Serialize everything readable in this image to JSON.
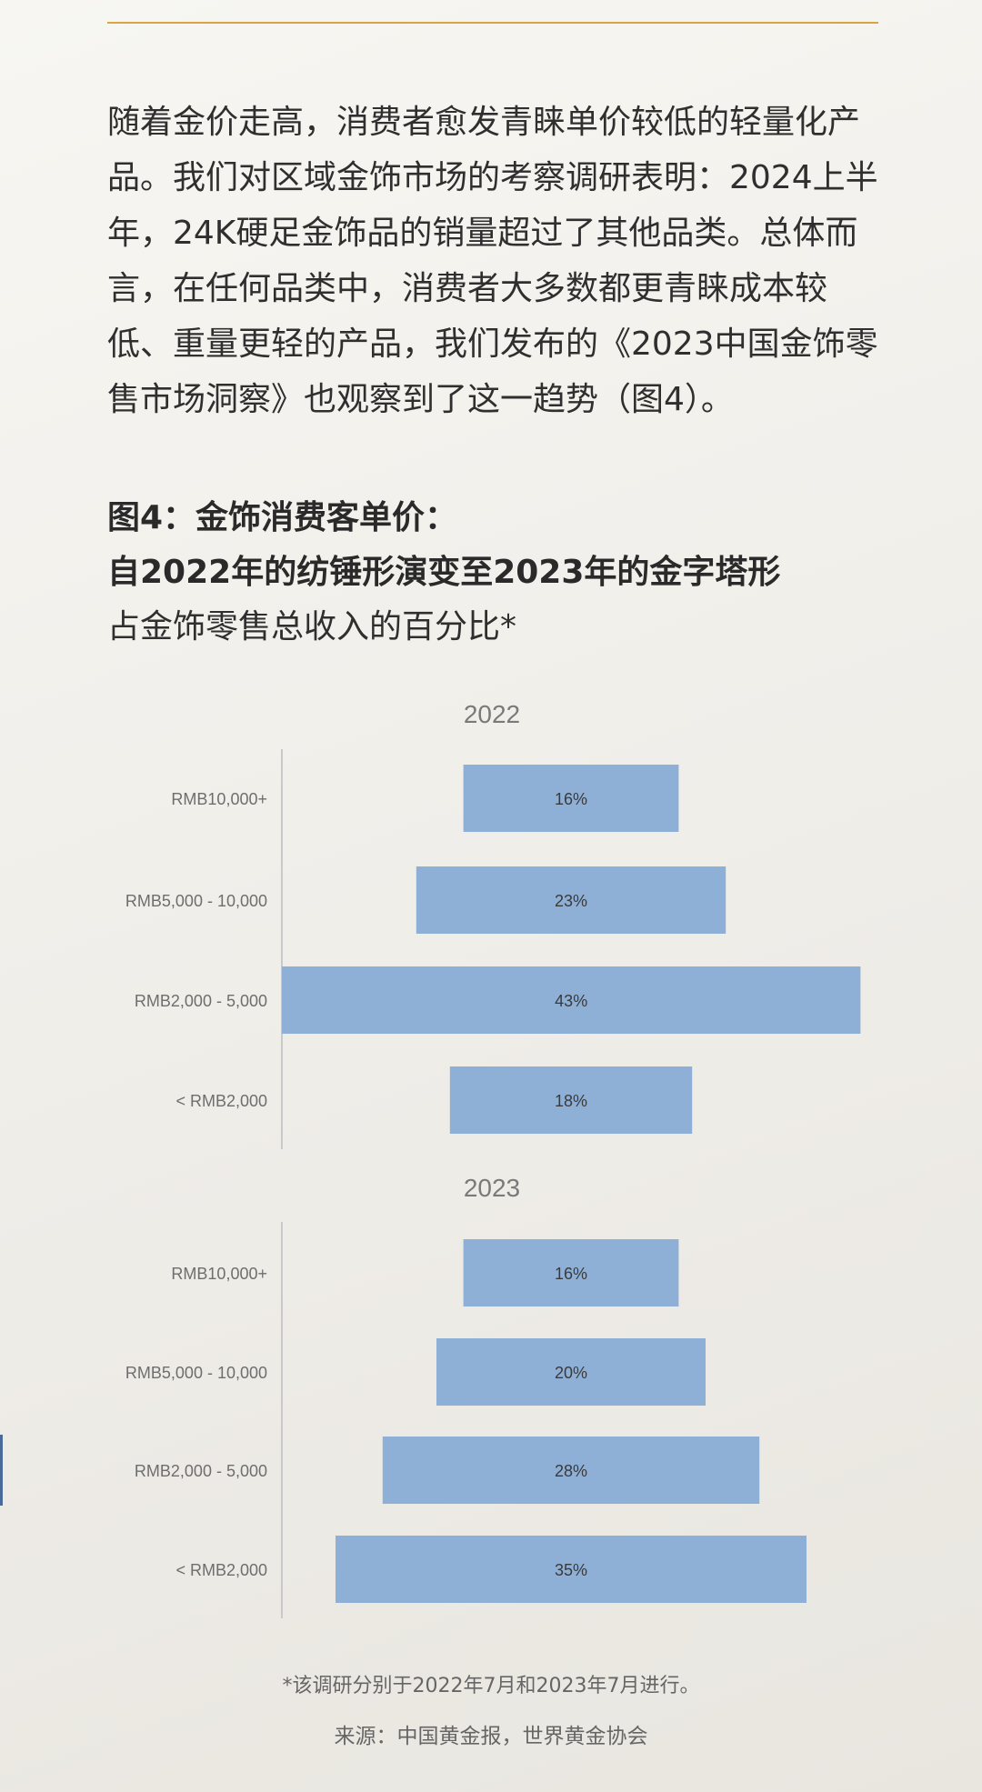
{
  "paragraph": "随着金价走高，消费者愈发青睐单价较低的轻量化产品。我们对区域金饰市场的考察调研表明：2024上半年，24K硬足金饰品的销量超过了其他品类。总体而言，在任何品类中，消费者大多数都更青睐成本较低、重量更轻的产品，我们发布的《2023中国金饰零售市场洞察》也观察到了这一趋势（图4）。",
  "figure": {
    "title_line1": "图4：金饰消费客单价：",
    "title_line2": "自2022年的纺锤形演变至2023年的金字塔形",
    "subtitle": "占金饰零售总收入的百分比*"
  },
  "chart_data": [
    {
      "type": "bar",
      "title": "2022",
      "categories": [
        "RMB10,000+",
        "RMB5,000 - 10,000",
        "RMB2,000 - 5,000",
        "< RMB2,000"
      ],
      "values": [
        16,
        23,
        43,
        18
      ],
      "value_labels": [
        "16%",
        "23%",
        "43%",
        "18%"
      ],
      "orientation": "horizontal-centered",
      "bar_color": "#8fb0d6"
    },
    {
      "type": "bar",
      "title": "2023",
      "categories": [
        "RMB10,000+",
        "RMB5,000 - 10,000",
        "RMB2,000 - 5,000",
        "< RMB2,000"
      ],
      "values": [
        16,
        20,
        28,
        35
      ],
      "value_labels": [
        "16%",
        "20%",
        "28%",
        "35%"
      ],
      "orientation": "horizontal-centered",
      "bar_color": "#8fb0d6"
    }
  ],
  "footnote": "*该调研分别于2022年7月和2023年7月进行。",
  "source": "来源：中国黄金报，世界黄金协会",
  "colors": {
    "accent_rule": "#d9a441",
    "bar": "#8fb0d6",
    "text": "#2f2f2f"
  }
}
